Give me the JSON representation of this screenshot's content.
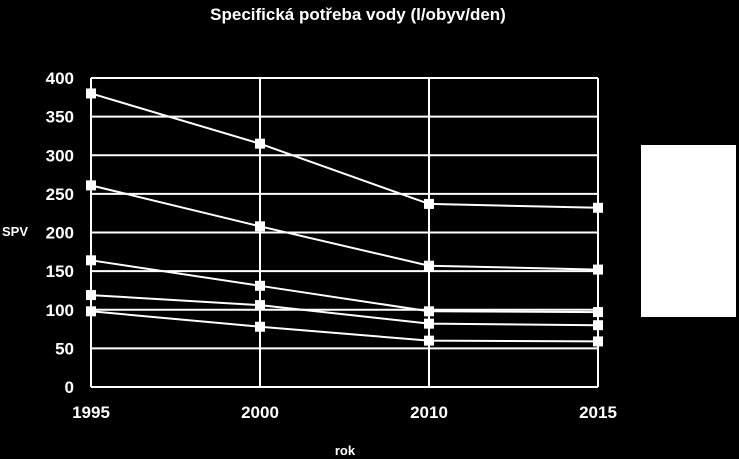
{
  "chart_data": {
    "type": "line",
    "title": "Specifická potřeba vody (l/obyv/den)",
    "xlabel": "rok",
    "ylabel": "SPV",
    "categories": [
      "1995",
      "2000",
      "2010",
      "2015"
    ],
    "ylim": [
      0,
      400
    ],
    "yticks": [
      0,
      50,
      100,
      150,
      200,
      250,
      300,
      350,
      400
    ],
    "grid": true,
    "legend": "right",
    "series": [
      {
        "values": [
          380,
          315,
          237,
          232
        ]
      },
      {
        "values": [
          261,
          208,
          157,
          152
        ]
      },
      {
        "values": [
          164,
          131,
          98,
          97
        ]
      },
      {
        "values": [
          119,
          106,
          82,
          80
        ]
      },
      {
        "values": [
          98,
          78,
          60,
          59
        ]
      }
    ],
    "colors": {
      "background": "#000000",
      "foreground": "#ffffff",
      "legend_box": "#ffffff"
    }
  }
}
